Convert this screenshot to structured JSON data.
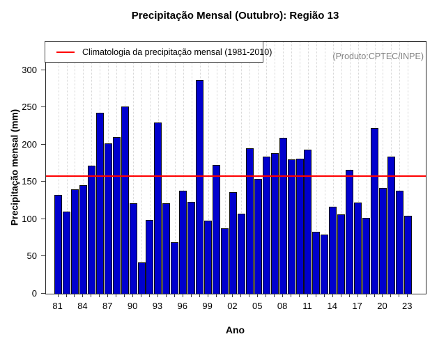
{
  "title": "Precipitação Mensal (Outubro): Região 13",
  "watermark": "(Produto:CPTEC/INPE)",
  "legend": {
    "label": "Climatologia da precipitação mensal (1981-2010)"
  },
  "chart_data": {
    "type": "bar",
    "title": "Precipitação Mensal (Outubro): Região 13",
    "xlabel": "Ano",
    "ylabel": "Precipitação mensal (mm)",
    "ylim": [
      0,
      338
    ],
    "yticks": [
      0,
      50,
      100,
      150,
      200,
      250,
      300
    ],
    "grid": "vertical-dotted",
    "legend_position": "top-left-inside",
    "categories": [
      "81",
      "82",
      "83",
      "84",
      "85",
      "86",
      "87",
      "88",
      "89",
      "90",
      "91",
      "92",
      "93",
      "94",
      "95",
      "96",
      "97",
      "98",
      "99",
      "00",
      "01",
      "02",
      "03",
      "04",
      "05",
      "06",
      "07",
      "08",
      "09",
      "10",
      "11",
      "12",
      "13",
      "14",
      "15",
      "16",
      "17",
      "18",
      "19",
      "20",
      "21",
      "22",
      "23"
    ],
    "values": [
      133,
      110,
      140,
      146,
      172,
      243,
      202,
      210,
      251,
      121,
      42,
      99,
      230,
      121,
      69,
      138,
      123,
      287,
      98,
      173,
      88,
      136,
      107,
      195,
      154,
      184,
      189,
      209,
      180,
      181,
      193,
      83,
      79,
      117,
      106,
      166,
      122,
      102,
      222,
      142,
      184,
      138,
      105
    ],
    "x_tick_labels_shown": [
      "81",
      "84",
      "87",
      "90",
      "93",
      "96",
      "99",
      "02",
      "05",
      "08",
      "11",
      "14",
      "17",
      "20",
      "23"
    ],
    "climatology": {
      "label": "Climatologia da precipitação mensal (1981-2010)",
      "value": 158,
      "color": "#ff0000"
    },
    "bar_color": "#0000cd",
    "bar_border_color": "#101010",
    "watermark": "(Produto:CPTEC/INPE)"
  }
}
